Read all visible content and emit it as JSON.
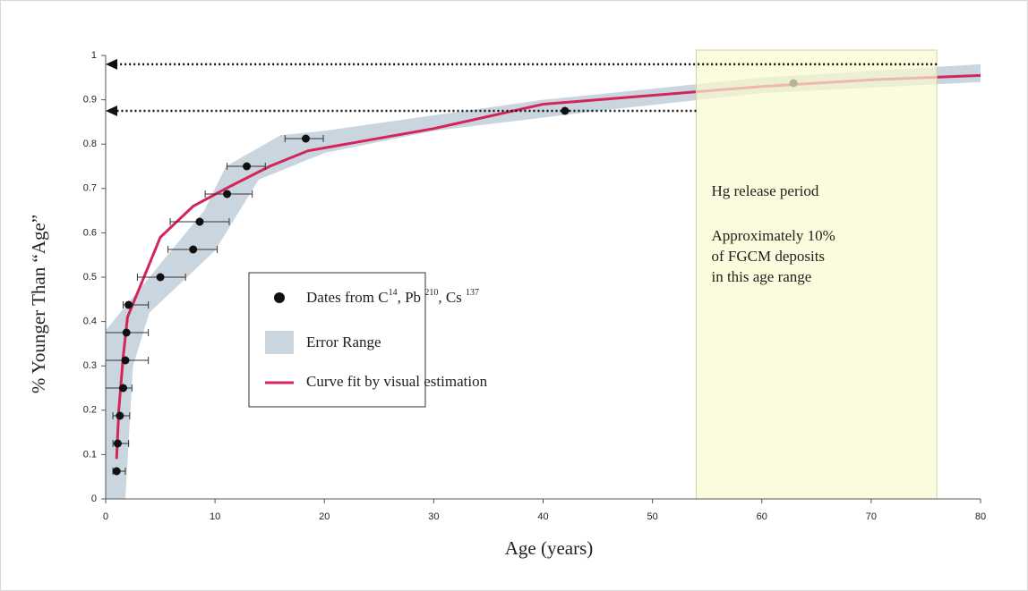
{
  "chart_data": {
    "type": "scatter",
    "x_label": "Age (years)",
    "y_label": "% Younger Than “Age”",
    "xlim": [
      0,
      80
    ],
    "ylim": [
      0,
      1
    ],
    "xticks": [
      0,
      10,
      20,
      30,
      40,
      50,
      60,
      70,
      80
    ],
    "yticks": [
      0,
      0.1,
      0.2,
      0.3,
      0.4,
      0.5,
      0.6,
      0.7,
      0.8,
      0.9,
      1
    ],
    "series": [
      {
        "type": "scatter",
        "legend_parts": [
          "Dates from C",
          "14",
          ", Pb ",
          "210",
          ", Cs ",
          "137"
        ],
        "color": "#111111",
        "x": [
          1.0,
          1.1,
          1.3,
          1.6,
          1.8,
          1.9,
          2.1,
          5.0,
          8.0,
          8.6,
          11.1,
          12.9,
          18.3,
          42,
          62.9
        ],
        "values": [
          0.0625,
          0.125,
          0.1875,
          0.25,
          0.3125,
          0.375,
          0.4375,
          0.5,
          0.5625,
          0.625,
          0.6875,
          0.75,
          0.8125,
          0.875,
          0.9375
        ],
        "x_low": [
          0.66,
          0.66,
          0.66,
          0,
          0,
          0,
          1.6,
          2.9,
          5.7,
          5.9,
          9.1,
          11.1,
          16.4,
          null,
          null
        ],
        "x_high": [
          1.8,
          2.1,
          2.2,
          2.4,
          3.9,
          3.9,
          3.9,
          7.3,
          10.2,
          11.3,
          13.4,
          14.6,
          19.9,
          null,
          null
        ]
      },
      {
        "type": "area",
        "name": "Error Range",
        "color": "#c9d6e0",
        "x": [
          0,
          4,
          9,
          11,
          16,
          20,
          40,
          60,
          80,
          80,
          60,
          45,
          30,
          20,
          14,
          10,
          7,
          4,
          2.5,
          1.8,
          0
        ],
        "values": [
          0.38,
          0.5,
          0.65,
          0.75,
          0.82,
          0.83,
          0.9,
          0.95,
          0.98,
          0.94,
          0.915,
          0.875,
          0.83,
          0.78,
          0.72,
          0.56,
          0.49,
          0.42,
          0.3,
          0,
          0
        ]
      },
      {
        "type": "line",
        "name": "Curve fit by visual estimation",
        "color": "#d4245a",
        "x": [
          1,
          1.2,
          1.6,
          2,
          5,
          8,
          11,
          15,
          18.5,
          30,
          40,
          50,
          60,
          70,
          80
        ],
        "values": [
          0.09,
          0.2,
          0.32,
          0.41,
          0.59,
          0.66,
          0.7,
          0.75,
          0.785,
          0.835,
          0.89,
          0.91,
          0.93,
          0.945,
          0.955
        ]
      }
    ],
    "region": {
      "xlim": [
        54,
        76
      ],
      "color": "#f9f9cf",
      "lines": [
        "Hg release period",
        "Approximately 10%",
        "of FGCM deposits",
        "in this age range"
      ]
    },
    "arrows": [
      {
        "y": 0.98,
        "x_from": 76
      },
      {
        "y": 0.875,
        "x_from": 54
      }
    ]
  }
}
